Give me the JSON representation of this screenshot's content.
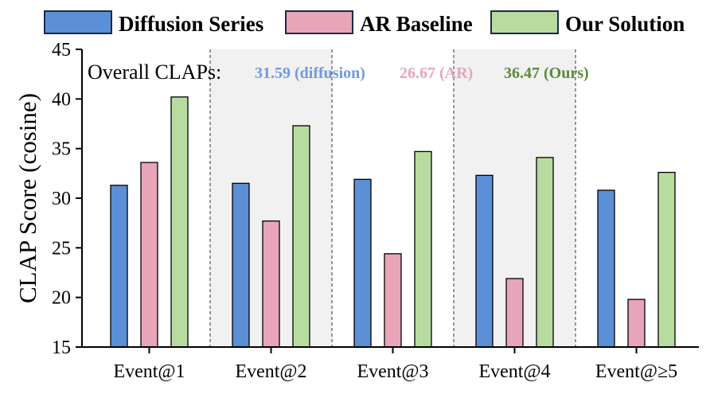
{
  "chart_data": {
    "type": "bar",
    "title": "",
    "xlabel": "",
    "ylabel": "CLAP Score (cosine)",
    "ylim": [
      15,
      45
    ],
    "yticks": [
      15,
      20,
      25,
      30,
      35,
      40,
      45
    ],
    "categories": [
      "Event@1",
      "Event@2",
      "Event@3",
      "Event@4",
      "Event@≥5"
    ],
    "shaded_groups": [
      1,
      3
    ],
    "legend_position": "top",
    "series": [
      {
        "name": "Diffusion Series",
        "color": "#5b8fd6",
        "values": [
          31.3,
          31.5,
          31.9,
          32.3,
          30.8
        ]
      },
      {
        "name": "AR Baseline",
        "color": "#e8a4b8",
        "values": [
          33.6,
          27.7,
          24.4,
          21.9,
          19.8
        ]
      },
      {
        "name": "Our Solution",
        "color": "#b8dca0",
        "values": [
          40.2,
          37.3,
          34.7,
          34.1,
          32.6
        ]
      }
    ],
    "annotation": {
      "lead": "Overall CLAPs:",
      "items": [
        {
          "text": "31.59 (diffusion)",
          "color": "#6f9bdb"
        },
        {
          "text": "26.67 (AR)",
          "color": "#e8a4b8"
        },
        {
          "text": "36.47 (Ours)",
          "color": "#5b8a3a"
        }
      ]
    }
  }
}
